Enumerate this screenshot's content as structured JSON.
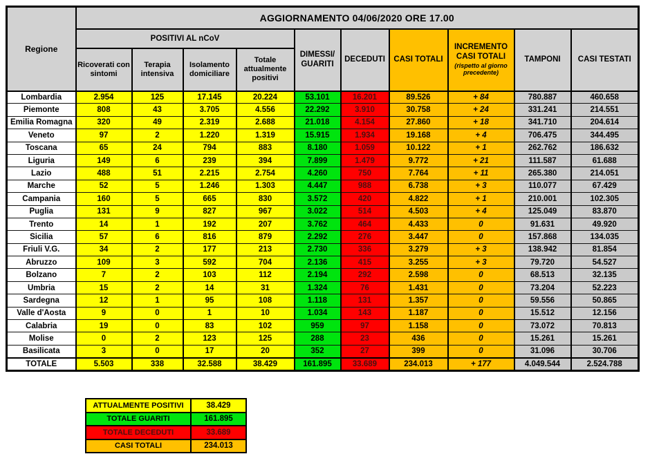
{
  "title": "AGGIORNAMENTO 04/06/2020 ORE 17.00",
  "colors": {
    "attualmente_positivi": "#ffff00",
    "guariti": "#00e40e",
    "deceduti": "#ff0000",
    "casi_totali": "#ffc000",
    "header_gray": "#d2d2d2",
    "data_gray": "#cacaca"
  },
  "table": {
    "region_header": "Regione",
    "group_header": "POSITIVI AL nCoV",
    "subcolumns": [
      "Ricoverati con sintomi",
      "Terapia intensiva",
      "Isolamento domiciliare",
      "Totale attualmente positivi"
    ],
    "columns": {
      "dimessi_guariti": "DIMESSI/ GUARITI",
      "deceduti": "DECEDUTI",
      "casi_totali": "CASI TOTALI",
      "incremento": "INCREMENTO CASI  TOTALI",
      "incremento_note": "(rispetto al giorno precedente)",
      "tamponi": "TAMPONI",
      "casi_testati": "CASI TESTATI"
    },
    "rows": [
      {
        "region": "Lombardia",
        "values": [
          "2.954",
          "125",
          "17.145",
          "20.224",
          "53.101",
          "16.201",
          "89.526",
          "+ 84",
          "780.887",
          "460.658"
        ]
      },
      {
        "region": "Piemonte",
        "values": [
          "808",
          "43",
          "3.705",
          "4.556",
          "22.292",
          "3.910",
          "30.758",
          "+ 24",
          "331.241",
          "214.551"
        ]
      },
      {
        "region": "Emilia Romagna",
        "values": [
          "320",
          "49",
          "2.319",
          "2.688",
          "21.018",
          "4.154",
          "27.860",
          "+ 18",
          "341.710",
          "204.614"
        ]
      },
      {
        "region": "Veneto",
        "values": [
          "97",
          "2",
          "1.220",
          "1.319",
          "15.915",
          "1.934",
          "19.168",
          "+ 4",
          "706.475",
          "344.495"
        ]
      },
      {
        "region": "Toscana",
        "values": [
          "65",
          "24",
          "794",
          "883",
          "8.180",
          "1.059",
          "10.122",
          "+ 1",
          "262.762",
          "186.632"
        ]
      },
      {
        "region": "Liguria",
        "values": [
          "149",
          "6",
          "239",
          "394",
          "7.899",
          "1.479",
          "9.772",
          "+ 21",
          "111.587",
          "61.688"
        ]
      },
      {
        "region": "Lazio",
        "values": [
          "488",
          "51",
          "2.215",
          "2.754",
          "4.260",
          "750",
          "7.764",
          "+ 11",
          "265.380",
          "214.051"
        ]
      },
      {
        "region": "Marche",
        "values": [
          "52",
          "5",
          "1.246",
          "1.303",
          "4.447",
          "988",
          "6.738",
          "+ 3",
          "110.077",
          "67.429"
        ]
      },
      {
        "region": "Campania",
        "values": [
          "160",
          "5",
          "665",
          "830",
          "3.572",
          "420",
          "4.822",
          "+ 1",
          "210.001",
          "102.305"
        ]
      },
      {
        "region": "Puglia",
        "values": [
          "131",
          "9",
          "827",
          "967",
          "3.022",
          "514",
          "4.503",
          "+ 4",
          "125.049",
          "83.870"
        ]
      },
      {
        "region": "Trento",
        "values": [
          "14",
          "1",
          "192",
          "207",
          "3.762",
          "464",
          "4.433",
          "0",
          "91.631",
          "49.920"
        ]
      },
      {
        "region": "Sicilia",
        "values": [
          "57",
          "6",
          "816",
          "879",
          "2.292",
          "276",
          "3.447",
          "0",
          "157.868",
          "134.035"
        ]
      },
      {
        "region": "Friuli V.G.",
        "values": [
          "34",
          "2",
          "177",
          "213",
          "2.730",
          "336",
          "3.279",
          "+ 3",
          "138.942",
          "81.854"
        ]
      },
      {
        "region": "Abruzzo",
        "values": [
          "109",
          "3",
          "592",
          "704",
          "2.136",
          "415",
          "3.255",
          "+ 3",
          "79.720",
          "54.527"
        ]
      },
      {
        "region": "Bolzano",
        "values": [
          "7",
          "2",
          "103",
          "112",
          "2.194",
          "292",
          "2.598",
          "0",
          "68.513",
          "32.135"
        ]
      },
      {
        "region": "Umbria",
        "values": [
          "15",
          "2",
          "14",
          "31",
          "1.324",
          "76",
          "1.431",
          "0",
          "73.204",
          "52.223"
        ]
      },
      {
        "region": "Sardegna",
        "values": [
          "12",
          "1",
          "95",
          "108",
          "1.118",
          "131",
          "1.357",
          "0",
          "59.556",
          "50.865"
        ]
      },
      {
        "region": "Valle d'Aosta",
        "values": [
          "9",
          "0",
          "1",
          "10",
          "1.034",
          "143",
          "1.187",
          "0",
          "15.512",
          "12.156"
        ]
      },
      {
        "region": "Calabria",
        "values": [
          "19",
          "0",
          "83",
          "102",
          "959",
          "97",
          "1.158",
          "0",
          "73.072",
          "70.813"
        ]
      },
      {
        "region": "Molise",
        "values": [
          "0",
          "2",
          "123",
          "125",
          "288",
          "23",
          "436",
          "0",
          "15.261",
          "15.261"
        ]
      },
      {
        "region": "Basilicata",
        "values": [
          "3",
          "0",
          "17",
          "20",
          "352",
          "27",
          "399",
          "0",
          "31.096",
          "30.706"
        ]
      }
    ],
    "total_row": {
      "region": "TOTALE",
      "values": [
        "5.503",
        "338",
        "32.588",
        "38.429",
        "161.895",
        "33.689",
        "234.013",
        "+ 177",
        "4.049.544",
        "2.524.788"
      ]
    }
  },
  "legend": {
    "rows": [
      {
        "label": "ATTUALMENTE POSITIVI",
        "value": "38.429",
        "color": "yellow"
      },
      {
        "label": "TOTALE GUARITI",
        "value": "161.895",
        "color": "green"
      },
      {
        "label": "TOTALE DECEDUTI",
        "value": "33.689",
        "color": "red"
      },
      {
        "label": "CASI TOTALI",
        "value": "234.013",
        "color": "orange"
      }
    ]
  }
}
